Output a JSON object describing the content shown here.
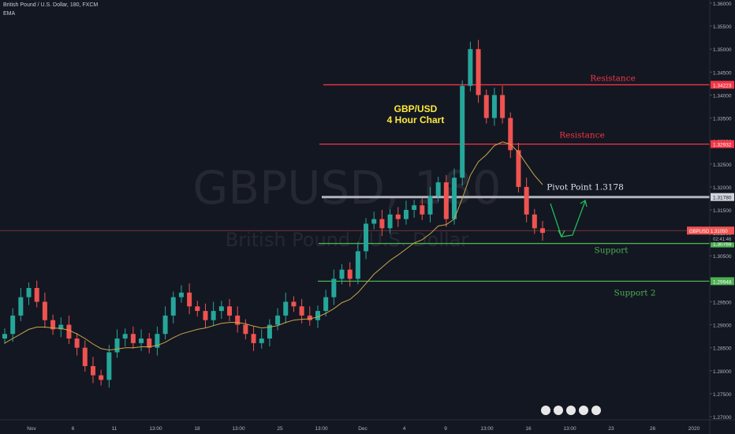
{
  "header": {
    "symbol_line": "British Pound / U.S. Dollar, 180, FXCM",
    "indicator": "EMA"
  },
  "watermark": {
    "symbol": "GBPUSD, 180",
    "name": "British Pound / U.S. Dollar"
  },
  "chart_title": {
    "line1": "GBP/USD",
    "line2": "4 Hour Chart"
  },
  "colors": {
    "background": "#131722",
    "up_candle": "#26a69a",
    "down_candle": "#ef5350",
    "ema": "#c8a64a",
    "resistance": "#f23645",
    "support": "#4caf50",
    "pivot": "#b2b5be",
    "arrow": "#22c55e",
    "title": "#ffeb3b"
  },
  "chart_data": {
    "type": "candlestick",
    "symbol": "GBPUSD",
    "timeframe": "180",
    "ylim": [
      1.27,
      1.36
    ],
    "y_ticks": [
      "1.36000",
      "1.35500",
      "1.35000",
      "1.34500",
      "1.34000",
      "1.33500",
      "1.33000",
      "1.32500",
      "1.32000",
      "1.31500",
      "1.31000",
      "1.30500",
      "1.30000",
      "1.29500",
      "1.29000",
      "1.28500",
      "1.28000",
      "1.27500",
      "1.27000"
    ],
    "x_ticks": [
      "Nov",
      "6",
      "11",
      "13:00",
      "18",
      "13:00",
      "25",
      "13:00",
      "Dec",
      "4",
      "9",
      "13:00",
      "16",
      "13:00",
      "23",
      "26",
      "2020"
    ],
    "levels": [
      {
        "name": "Resistance",
        "value": 1.34223,
        "label": "1.34223",
        "kind": "resistance"
      },
      {
        "name": "Resistance",
        "value": 1.32932,
        "label": "1.32932",
        "kind": "resistance"
      },
      {
        "name": "Pivot Point 1.3178",
        "value": 1.3178,
        "label": "1.31780",
        "kind": "pivot"
      },
      {
        "name": "Support",
        "value": 1.30769,
        "label": "1.30769",
        "kind": "support"
      },
      {
        "name": "Support 2",
        "value": 1.29948,
        "label": "1.29948",
        "kind": "support"
      }
    ],
    "current_price": {
      "symbol": "GBPUSD",
      "value": 1.3105,
      "label": "1.31050",
      "countdown": "02:41:46"
    },
    "series": [
      {
        "name": "GBPUSD",
        "close": [
          1.288,
          1.292,
          1.296,
          1.298,
          1.295,
          1.291,
          1.289,
          1.29,
          1.287,
          1.285,
          1.281,
          1.279,
          1.278,
          1.284,
          1.287,
          1.288,
          1.286,
          1.287,
          1.285,
          1.288,
          1.292,
          1.296,
          1.297,
          1.294,
          1.293,
          1.291,
          1.293,
          1.294,
          1.292,
          1.29,
          1.288,
          1.286,
          1.287,
          1.29,
          1.292,
          1.295,
          1.294,
          1.292,
          1.291,
          1.293,
          1.296,
          1.3,
          1.302,
          1.3,
          1.306,
          1.312,
          1.313,
          1.311,
          1.314,
          1.313,
          1.315,
          1.316,
          1.314,
          1.318,
          1.321,
          1.313,
          1.322,
          1.342,
          1.35,
          1.34,
          1.335,
          1.34,
          1.335,
          1.328,
          1.32,
          1.314,
          1.311,
          1.31
        ]
      },
      {
        "name": "EMA",
        "values": [
          1.286,
          1.287,
          1.288,
          1.289,
          1.2895,
          1.2895,
          1.2893,
          1.2892,
          1.2888,
          1.288,
          1.287,
          1.2858,
          1.2848,
          1.2845,
          1.2847,
          1.285,
          1.285,
          1.2852,
          1.2852,
          1.2855,
          1.2862,
          1.2872,
          1.288,
          1.2885,
          1.289,
          1.2893,
          1.2898,
          1.2903,
          1.2905,
          1.2905,
          1.2902,
          1.2897,
          1.2893,
          1.2895,
          1.2898,
          1.2905,
          1.291,
          1.2912,
          1.2913,
          1.2917,
          1.2925,
          1.2935,
          1.2948,
          1.2955,
          1.297,
          1.299,
          1.301,
          1.3025,
          1.304,
          1.3052,
          1.3065,
          1.3078,
          1.3085,
          1.3098,
          1.3115,
          1.3118,
          1.313,
          1.3175,
          1.3225,
          1.3255,
          1.327,
          1.329,
          1.3298,
          1.3293,
          1.3275,
          1.325,
          1.3225,
          1.3205
        ]
      }
    ],
    "annotations": [
      {
        "text": "Resistance",
        "level": 1.34223
      },
      {
        "text": "Resistance",
        "level": 1.32932
      },
      {
        "text": "Pivot Point 1.3178",
        "level": 1.3178
      },
      {
        "text": "Support",
        "level": 1.30769
      },
      {
        "text": "Support 2",
        "level": 1.29948
      }
    ]
  }
}
